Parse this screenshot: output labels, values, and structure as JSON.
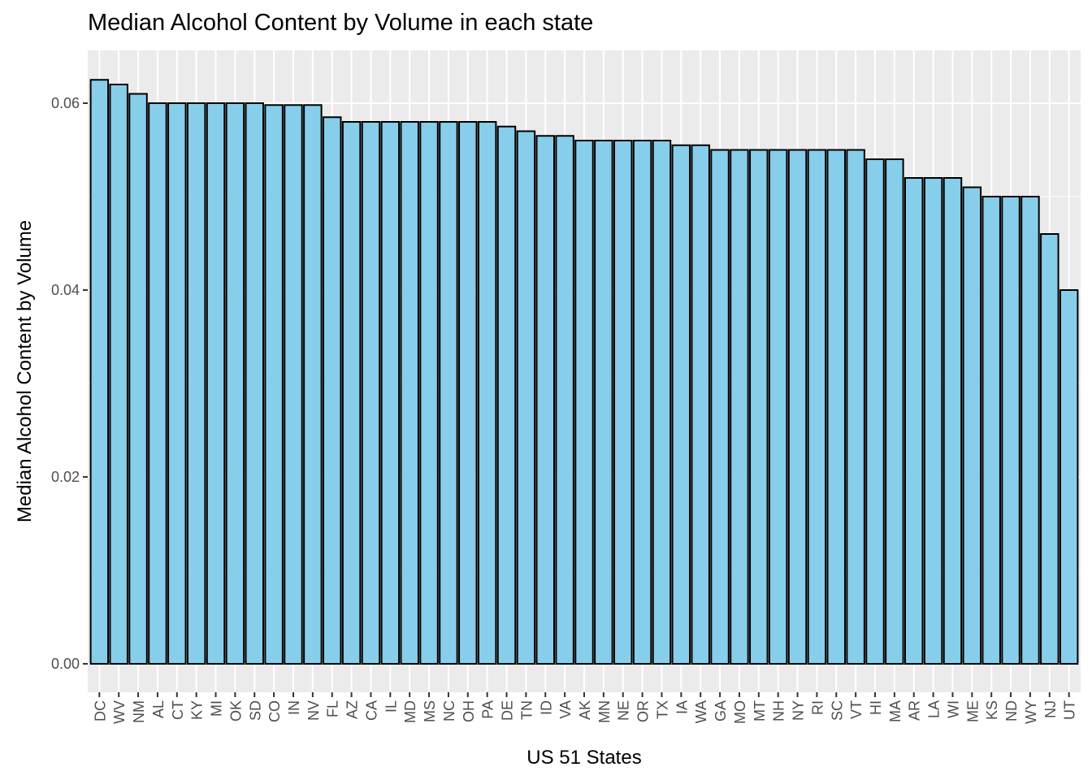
{
  "chart_data": {
    "type": "bar",
    "title": "Median Alcohol Content by Volume in each state",
    "xlabel": "US 51 States",
    "ylabel": "Median Alcohol Content by Volume",
    "ylim": [
      0,
      0.065
    ],
    "yticks": [
      0.0,
      0.02,
      0.04,
      0.06
    ],
    "ytick_labels": [
      "0.00",
      "0.02",
      "0.04",
      "0.06"
    ],
    "grid": true,
    "bar_fill": "#87CEEB",
    "bar_outline": "#000000",
    "panel_background": "#EBEBEB",
    "grid_color": "#FFFFFF",
    "categories": [
      "DC",
      "WV",
      "NM",
      "AL",
      "CT",
      "KY",
      "MI",
      "OK",
      "SD",
      "CO",
      "IN",
      "NV",
      "FL",
      "AZ",
      "CA",
      "IL",
      "MD",
      "MS",
      "NC",
      "OH",
      "PA",
      "DE",
      "TN",
      "ID",
      "VA",
      "AK",
      "MN",
      "NE",
      "OR",
      "TX",
      "IA",
      "WA",
      "GA",
      "MO",
      "MT",
      "NH",
      "NY",
      "RI",
      "SC",
      "VT",
      "HI",
      "MA",
      "AR",
      "LA",
      "WI",
      "ME",
      "KS",
      "ND",
      "WY",
      "NJ",
      "UT"
    ],
    "values": [
      0.0625,
      0.062,
      0.061,
      0.06,
      0.06,
      0.06,
      0.06,
      0.06,
      0.06,
      0.0598,
      0.0598,
      0.0598,
      0.0585,
      0.058,
      0.058,
      0.058,
      0.058,
      0.058,
      0.058,
      0.058,
      0.058,
      0.0575,
      0.057,
      0.0565,
      0.0565,
      0.056,
      0.056,
      0.056,
      0.056,
      0.056,
      0.0555,
      0.0555,
      0.055,
      0.055,
      0.055,
      0.055,
      0.055,
      0.055,
      0.055,
      0.055,
      0.054,
      0.054,
      0.052,
      0.052,
      0.052,
      0.051,
      0.05,
      0.05,
      0.05,
      0.046,
      0.04
    ]
  }
}
